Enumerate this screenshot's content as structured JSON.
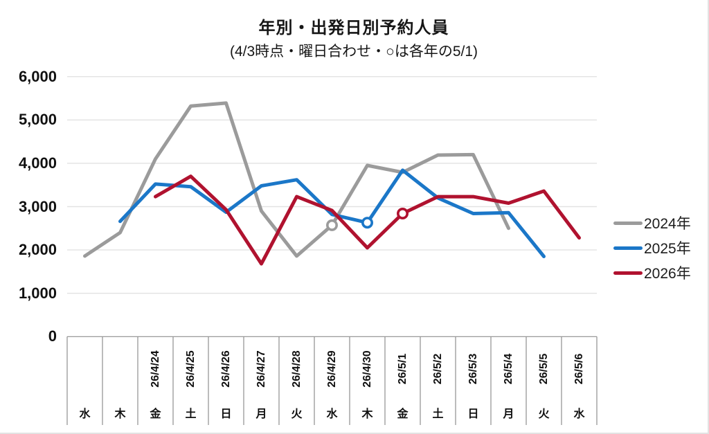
{
  "chart": {
    "title": "年別・出発日別予約人員",
    "subtitle": "(4/3時点・曜日合わせ・○は各年の5/1)"
  },
  "chart_data": {
    "type": "line",
    "title": "年別・出発日別予約人員",
    "subtitle": "(4/3時点・曜日合わせ・○は各年の5/1)",
    "ylabel": "",
    "xlabel": "",
    "ylim": [
      0,
      6000
    ],
    "grid": true,
    "legend_position": "right",
    "marker_note": "○は各年の5/1",
    "yticks": [
      {
        "value": 0,
        "label": "0"
      },
      {
        "value": 1000,
        "label": "1,000"
      },
      {
        "value": 2000,
        "label": "2,000"
      },
      {
        "value": 3000,
        "label": "3,000"
      },
      {
        "value": 4000,
        "label": "4,000"
      },
      {
        "value": 5000,
        "label": "5,000"
      },
      {
        "value": 6000,
        "label": "6,000"
      }
    ],
    "categories": [
      {
        "date": "",
        "weekday": "水"
      },
      {
        "date": "",
        "weekday": "木"
      },
      {
        "date": "26/4/24",
        "weekday": "金"
      },
      {
        "date": "26/4/25",
        "weekday": "土"
      },
      {
        "date": "26/4/26",
        "weekday": "日"
      },
      {
        "date": "26/4/27",
        "weekday": "月"
      },
      {
        "date": "26/4/28",
        "weekday": "火"
      },
      {
        "date": "26/4/29",
        "weekday": "水"
      },
      {
        "date": "26/4/30",
        "weekday": "木"
      },
      {
        "date": "26/5/1",
        "weekday": "金"
      },
      {
        "date": "26/5/2",
        "weekday": "土"
      },
      {
        "date": "26/5/3",
        "weekday": "日"
      },
      {
        "date": "26/5/4",
        "weekday": "月"
      },
      {
        "date": "26/5/5",
        "weekday": "火"
      },
      {
        "date": "26/5/6",
        "weekday": "水"
      }
    ],
    "series": [
      {
        "name": "2024年",
        "color": "#9B9B9B",
        "marker_category_index": 7,
        "values": [
          1860,
          2400,
          4100,
          5320,
          5390,
          2900,
          1860,
          2570,
          3950,
          3790,
          4190,
          4200,
          2500,
          null,
          null
        ]
      },
      {
        "name": "2025年",
        "color": "#1B77C8",
        "marker_category_index": 8,
        "values": [
          null,
          2660,
          3520,
          3460,
          2870,
          3480,
          3620,
          2820,
          2630,
          3840,
          3200,
          2840,
          2860,
          1850,
          null
        ]
      },
      {
        "name": "2026年",
        "color": "#B0122F",
        "marker_category_index": 9,
        "values": [
          null,
          null,
          3230,
          3700,
          2930,
          1680,
          3230,
          2910,
          2050,
          2840,
          3230,
          3230,
          3080,
          3360,
          2280
        ]
      }
    ]
  }
}
